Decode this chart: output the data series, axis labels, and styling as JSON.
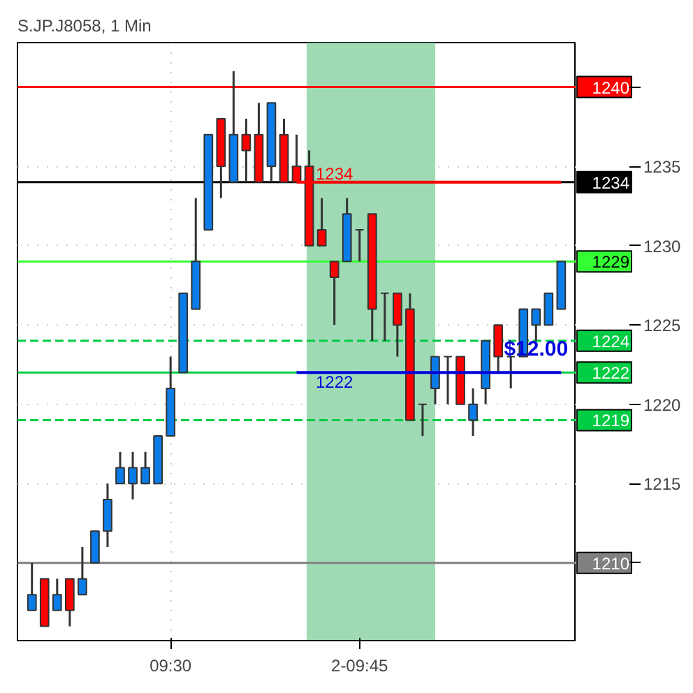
{
  "chart_data": {
    "type": "candlestick",
    "title": "S.JP.J8058, 1 Min",
    "categories": [
      null,
      null,
      null,
      null,
      null,
      null,
      null,
      null,
      null,
      null,
      null,
      "09:30",
      null,
      null,
      null,
      null,
      null,
      null,
      null,
      null,
      null,
      null,
      null,
      null,
      null,
      null,
      "2-09:45",
      null,
      null,
      null,
      null,
      null,
      null,
      null,
      null,
      null,
      null,
      null,
      null,
      null,
      null,
      null,
      null
    ],
    "ohlc": [
      [
        1207,
        1210,
        1207,
        1208
      ],
      [
        1209,
        1209,
        1206,
        1206
      ],
      [
        1207,
        1209,
        1207,
        1208
      ],
      [
        1209,
        1209,
        1206,
        1207
      ],
      [
        1208,
        1211,
        1208,
        1209
      ],
      [
        1210,
        1212,
        1210,
        1212
      ],
      [
        1212,
        1215,
        1211,
        1214
      ],
      [
        1215,
        1217,
        1215,
        1216
      ],
      [
        1215,
        1217,
        1214,
        1216
      ],
      [
        1215,
        1217,
        1215,
        1216
      ],
      [
        1215,
        1218,
        1215,
        1218
      ],
      [
        1218,
        1223,
        1218,
        1221
      ],
      [
        1222,
        1227,
        1222,
        1227
      ],
      [
        1226,
        1233,
        1226,
        1229
      ],
      [
        1231,
        1237,
        1231,
        1237
      ],
      [
        1238,
        1238,
        1233,
        1235
      ],
      [
        1234,
        1241,
        1234,
        1237
      ],
      [
        1237,
        1238,
        1234,
        1236
      ],
      [
        1237,
        1239,
        1234,
        1234
      ],
      [
        1235,
        1239,
        1234,
        1239
      ],
      [
        1237,
        1238,
        1234,
        1234
      ],
      [
        1235,
        1237,
        1234,
        1234
      ],
      [
        1235,
        1236,
        1230,
        1230
      ],
      [
        1231,
        1233,
        1230,
        1230
      ],
      [
        1229,
        1229,
        1225,
        1228
      ],
      [
        1229,
        1233,
        1229,
        1232
      ],
      [
        1231,
        1231,
        1229,
        1231
      ],
      [
        1232,
        1232,
        1224,
        1226
      ],
      [
        1227,
        1227,
        1224,
        1227
      ],
      [
        1227,
        1227,
        1223,
        1225
      ],
      [
        1226,
        1227,
        1219,
        1219
      ],
      [
        1220,
        1220,
        1218,
        1220
      ],
      [
        1221,
        1223,
        1220,
        1223
      ],
      [
        1223,
        1223,
        1220,
        1223
      ],
      [
        1223,
        1223,
        1220,
        1220
      ],
      [
        1219,
        1221,
        1218,
        1220
      ],
      [
        1221,
        1224,
        1220,
        1224
      ],
      [
        1225,
        1225,
        1222,
        1223
      ],
      [
        1223,
        1223,
        1221,
        1223
      ],
      [
        1223,
        1226,
        1223,
        1226
      ],
      [
        1225,
        1226,
        1224,
        1226
      ],
      [
        1225,
        1227,
        1225,
        1227
      ],
      [
        1226,
        1229,
        1226,
        1229
      ]
    ],
    "colors": [
      "#0a7ce8",
      "#ff0000",
      "#0a7ce8",
      "#ff0000",
      "#0a7ce8",
      "#0a7ce8",
      "#0a7ce8",
      "#0a7ce8",
      "#0a7ce8",
      "#0a7ce8",
      "#0a7ce8",
      "#0a7ce8",
      "#0a7ce8",
      "#0a7ce8",
      "#0a7ce8",
      "#ff0000",
      "#0a7ce8",
      "#ff0000",
      "#ff0000",
      "#0a7ce8",
      "#ff0000",
      "#ff0000",
      "#ff0000",
      "#ff0000",
      "#ff0000",
      "#0a7ce8",
      "#333333",
      "#ff0000",
      "#333333",
      "#ff0000",
      "#ff0000",
      "#333333",
      "#0a7ce8",
      "#333333",
      "#ff0000",
      "#0a7ce8",
      "#0a7ce8",
      "#ff0000",
      "#333333",
      "#0a7ce8",
      "#0a7ce8",
      "#0a7ce8",
      "#0a7ce8"
    ],
    "series": [
      {
        "type": "line",
        "color": "#ff0000",
        "values": [
          null,
          null,
          null,
          null,
          null,
          null,
          null,
          null,
          null,
          null,
          null,
          null,
          null,
          null,
          null,
          null,
          null,
          null,
          null,
          null,
          null,
          1234,
          1234,
          1234,
          1234,
          1234,
          1234,
          1234,
          1234,
          1234,
          1234,
          1234,
          1234,
          1234,
          1234,
          1234,
          1234,
          1234,
          1234,
          1234,
          1234,
          1234,
          1234
        ],
        "value_labels": [
          null,
          null,
          null,
          null,
          null,
          null,
          null,
          null,
          null,
          null,
          null,
          null,
          null,
          null,
          null,
          null,
          null,
          null,
          null,
          null,
          null,
          null,
          null,
          null,
          "1234",
          null,
          null,
          null,
          null,
          null,
          null,
          null,
          null,
          null,
          null,
          null,
          null,
          null,
          null,
          null,
          null,
          null,
          null
        ]
      },
      {
        "type": "line",
        "color": "#0000dd",
        "values": [
          null,
          null,
          null,
          null,
          null,
          null,
          null,
          null,
          null,
          null,
          null,
          null,
          null,
          null,
          null,
          null,
          null,
          null,
          null,
          null,
          null,
          1222,
          1222,
          1222,
          1222,
          1222,
          1222,
          1222,
          1222,
          1222,
          1222,
          1222,
          1222,
          1222,
          1222,
          1222,
          1222,
          1222,
          1222,
          1222,
          1222,
          1222,
          1222
        ],
        "value_labels": [
          null,
          null,
          null,
          null,
          null,
          null,
          null,
          null,
          null,
          null,
          null,
          null,
          null,
          null,
          null,
          null,
          null,
          null,
          null,
          null,
          null,
          null,
          null,
          null,
          "1222",
          null,
          null,
          null,
          null,
          null,
          null,
          null,
          null,
          null,
          null,
          null,
          null,
          null,
          null,
          null,
          null,
          null,
          null
        ]
      }
    ],
    "annotations": [
      "$12.00"
    ],
    "ylim": [
      1205.1,
      1242.8
    ],
    "yticks": [
      {
        "value": 1210,
        "label": null
      },
      1215,
      1220,
      1225,
      1230,
      1235,
      {
        "value": 1240,
        "label": null
      }
    ],
    "grid": true,
    "ref_lines": [
      {
        "axis": "y",
        "value": 1240,
        "label": "1240",
        "color": "#ff0000"
      },
      {
        "axis": "y",
        "value": 1234,
        "label": "1234",
        "color": "#000000"
      },
      {
        "axis": "y",
        "value": 1229,
        "label": "1229",
        "color": "#33ff33"
      },
      {
        "axis": "y",
        "value": 1224,
        "label": "1224",
        "color": "#00cc44",
        "line_style": "dashed"
      },
      {
        "axis": "y",
        "value": 1222,
        "label": "1222",
        "color": "#00cc44"
      },
      {
        "axis": "y",
        "value": 1219,
        "label": "1219",
        "color": "#00cc44",
        "line_style": "dashed"
      },
      {
        "axis": "y",
        "value": 1210,
        "label": "1210",
        "color": "#808080"
      }
    ]
  }
}
